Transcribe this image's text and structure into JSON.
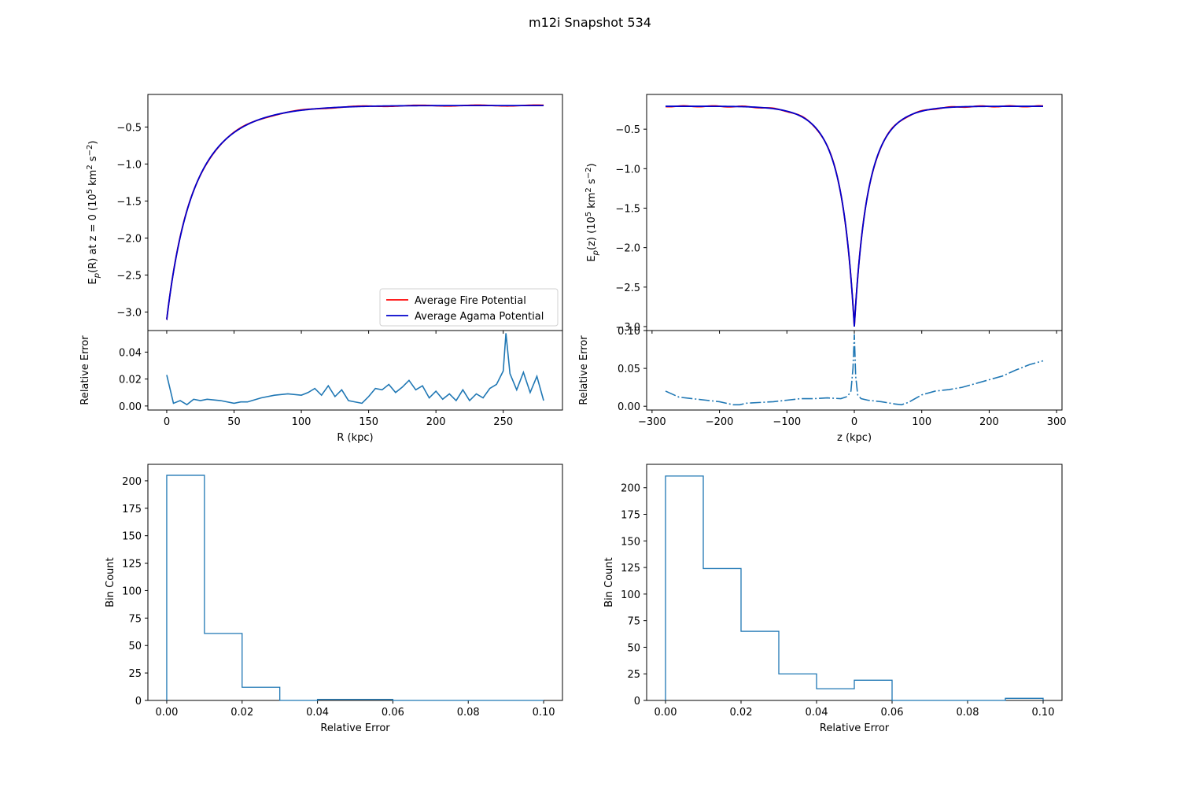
{
  "figure": {
    "title": "m12i Snapshot 534"
  },
  "colors": {
    "fire": "#ff0000",
    "agama": "#0000cc",
    "error": "#1f77b4"
  },
  "chart_data": [
    {
      "id": "potential-R",
      "type": "line",
      "xlim": [
        -14,
        294
      ],
      "ylim": [
        -3.25,
        -0.06
      ],
      "xticks": [
        0,
        50,
        100,
        150,
        200,
        250
      ],
      "yticks": [
        -3.0,
        -2.5,
        -2.0,
        -1.5,
        -1.0,
        -0.5
      ],
      "ytick_labels": [
        "−3.0",
        "−2.5",
        "−2.0",
        "−1.5",
        "−1.0",
        "−0.5"
      ],
      "ylabel": {
        "pre": "E",
        "sub": "p",
        "mid": "(R) at z = 0 (10",
        "sup1": "5",
        "unit": " km",
        "sup2": "2",
        "tail": " s",
        "sup3": "−2",
        "close": ")"
      },
      "model": {
        "form": "radial",
        "x_min": 0,
        "x_max": 280,
        "y_min": -3.1,
        "y_max": -0.21,
        "scale": 8
      },
      "series": [
        {
          "name": "Average Fire Potential",
          "color": "#ff0000"
        },
        {
          "name": "Average Agama Potential",
          "color": "#0000cc"
        }
      ],
      "legend": "lower-right"
    },
    {
      "id": "error-R",
      "type": "line",
      "xlim": [
        -14,
        294
      ],
      "ylim": [
        -0.003,
        0.056
      ],
      "xticks": [
        0,
        50,
        100,
        150,
        200,
        250
      ],
      "xtick_labels": [
        "0",
        "50",
        "100",
        "150",
        "200",
        "250"
      ],
      "yticks": [
        0.0,
        0.02,
        0.04
      ],
      "ytick_labels": [
        "0.00",
        "0.02",
        "0.04"
      ],
      "xlabel": "R (kpc)",
      "ylabel": "Relative Error",
      "x": [
        0,
        5,
        10,
        15,
        20,
        25,
        30,
        40,
        50,
        55,
        60,
        70,
        80,
        90,
        100,
        105,
        110,
        115,
        120,
        125,
        130,
        135,
        140,
        145,
        150,
        155,
        160,
        165,
        170,
        175,
        180,
        185,
        190,
        195,
        200,
        205,
        210,
        215,
        220,
        225,
        230,
        235,
        240,
        245,
        250,
        252,
        255,
        260,
        265,
        270,
        275,
        280
      ],
      "y": [
        0.023,
        0.002,
        0.004,
        0.001,
        0.005,
        0.004,
        0.005,
        0.004,
        0.002,
        0.003,
        0.003,
        0.006,
        0.008,
        0.009,
        0.008,
        0.01,
        0.013,
        0.008,
        0.015,
        0.007,
        0.012,
        0.004,
        0.003,
        0.002,
        0.007,
        0.013,
        0.012,
        0.016,
        0.01,
        0.014,
        0.019,
        0.012,
        0.015,
        0.006,
        0.011,
        0.005,
        0.009,
        0.004,
        0.012,
        0.004,
        0.009,
        0.006,
        0.013,
        0.016,
        0.026,
        0.054,
        0.024,
        0.012,
        0.025,
        0.01,
        0.022,
        0.004
      ]
    },
    {
      "id": "potential-z",
      "type": "line",
      "xlim": [
        -308,
        308
      ],
      "ylim": [
        -3.05,
        -0.06
      ],
      "xticks": [
        -300,
        -200,
        -100,
        0,
        100,
        200,
        300
      ],
      "yticks": [
        -3.0,
        -2.5,
        -2.0,
        -1.5,
        -1.0,
        -0.5
      ],
      "ytick_labels": [
        "−3.0",
        "−2.5",
        "−2.0",
        "−1.5",
        "−1.0",
        "−0.5"
      ],
      "ylabel": {
        "pre": "E",
        "sub": "p",
        "mid": "(z) (10",
        "sup1": "5",
        "unit": " km",
        "sup2": "2",
        "tail": " s",
        "sup3": "−2",
        "close": ")"
      },
      "model": {
        "form": "symmetric",
        "x_min": -280,
        "x_max": 280,
        "y_min": -3.0,
        "y_max": -0.21,
        "scale": 8
      },
      "series": [
        {
          "name": "Average Fire Potential",
          "color": "#ff0000"
        },
        {
          "name": "Average Agama Potential",
          "color": "#0000cc"
        }
      ]
    },
    {
      "id": "error-z",
      "type": "line",
      "xlim": [
        -308,
        308
      ],
      "ylim": [
        -0.005,
        0.1
      ],
      "xticks": [
        -300,
        -200,
        -100,
        0,
        100,
        200,
        300
      ],
      "xtick_labels": [
        "−300",
        "−200",
        "−100",
        "0",
        "100",
        "200",
        "300"
      ],
      "yticks": [
        0.0,
        0.05,
        0.1
      ],
      "ytick_labels": [
        "0.00",
        "0.05",
        "0.10"
      ],
      "xlabel": "z (kpc)",
      "ylabel": "Relative Error",
      "x": [
        -280,
        -260,
        -240,
        -220,
        -200,
        -180,
        -170,
        -160,
        -140,
        -120,
        -100,
        -80,
        -60,
        -40,
        -20,
        -10,
        -5,
        -2,
        0,
        2,
        5,
        10,
        20,
        40,
        60,
        70,
        80,
        100,
        120,
        140,
        160,
        180,
        200,
        220,
        240,
        260,
        280
      ],
      "y": [
        0.02,
        0.012,
        0.01,
        0.008,
        0.006,
        0.002,
        0.002,
        0.004,
        0.005,
        0.006,
        0.008,
        0.01,
        0.01,
        0.011,
        0.01,
        0.013,
        0.02,
        0.05,
        0.095,
        0.04,
        0.015,
        0.01,
        0.008,
        0.006,
        0.003,
        0.002,
        0.005,
        0.015,
        0.02,
        0.022,
        0.025,
        0.03,
        0.035,
        0.04,
        0.048,
        0.055,
        0.06
      ]
    },
    {
      "id": "hist-R",
      "type": "bar",
      "xlim": [
        -0.005,
        0.105
      ],
      "ylim": [
        0,
        215
      ],
      "xticks": [
        0.0,
        0.02,
        0.04,
        0.06,
        0.08,
        0.1
      ],
      "xtick_labels": [
        "0.00",
        "0.02",
        "0.04",
        "0.06",
        "0.08",
        "0.10"
      ],
      "yticks": [
        0,
        25,
        50,
        75,
        100,
        125,
        150,
        175,
        200
      ],
      "xlabel": "Relative Error",
      "ylabel": "Bin Count",
      "bin_edges": [
        0.0,
        0.01,
        0.02,
        0.03,
        0.04,
        0.05,
        0.06,
        0.07,
        0.08,
        0.09,
        0.1
      ],
      "values": [
        205,
        61,
        12,
        0,
        1,
        1,
        0,
        0,
        0,
        0
      ]
    },
    {
      "id": "hist-z",
      "type": "bar",
      "xlim": [
        -0.005,
        0.105
      ],
      "ylim": [
        0,
        222
      ],
      "xticks": [
        0.0,
        0.02,
        0.04,
        0.06,
        0.08,
        0.1
      ],
      "xtick_labels": [
        "0.00",
        "0.02",
        "0.04",
        "0.06",
        "0.08",
        "0.10"
      ],
      "yticks": [
        0,
        25,
        50,
        75,
        100,
        125,
        150,
        175,
        200
      ],
      "xlabel": "Relative Error",
      "ylabel": "Bin Count",
      "bin_edges": [
        0.0,
        0.01,
        0.02,
        0.03,
        0.04,
        0.05,
        0.06,
        0.07,
        0.08,
        0.09,
        0.1
      ],
      "values": [
        211,
        124,
        65,
        25,
        11,
        19,
        0,
        0,
        0,
        2
      ]
    }
  ]
}
